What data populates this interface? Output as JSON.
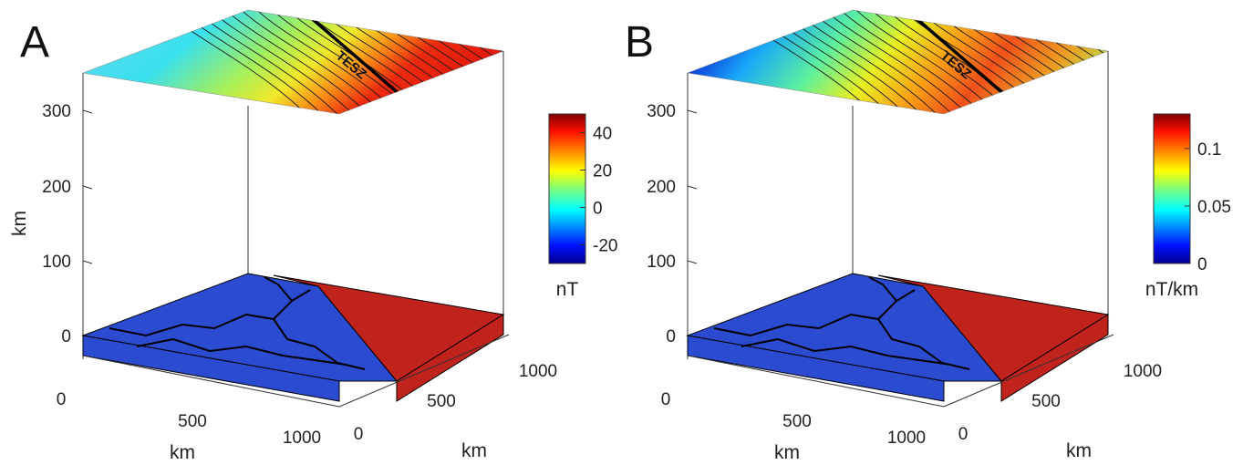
{
  "chart_data": [
    {
      "type": "heatmap",
      "panel_label": "A",
      "zlabel": "km",
      "xlabel": "km",
      "ylabel": "km",
      "z_ticks": [
        "0",
        "100",
        "200",
        "300"
      ],
      "x_ticks": [
        "0",
        "500",
        "1000"
      ],
      "y_ticks": [
        "0",
        "500",
        "1000"
      ],
      "colorbar": {
        "ticks": [
          "40",
          "20",
          "0",
          "-20"
        ],
        "unit": "nT",
        "range": [
          -30,
          50
        ]
      },
      "annotation": "TESZ",
      "slab_colors": {
        "west": "#2b4bd0",
        "east": "#c0221c"
      }
    },
    {
      "type": "heatmap",
      "panel_label": "B",
      "zlabel": "",
      "xlabel": "km",
      "ylabel": "km",
      "z_ticks": [
        "0",
        "100",
        "200",
        "300"
      ],
      "x_ticks": [
        "0",
        "500",
        "1000"
      ],
      "y_ticks": [
        "0",
        "500",
        "1000"
      ],
      "colorbar": {
        "ticks": [
          "0.1",
          "0.05",
          "0"
        ],
        "unit": "nT/km",
        "range": [
          0,
          0.13
        ]
      },
      "annotation": "TESZ",
      "slab_colors": {
        "west": "#2b4bd0",
        "east": "#c0221c"
      }
    }
  ]
}
